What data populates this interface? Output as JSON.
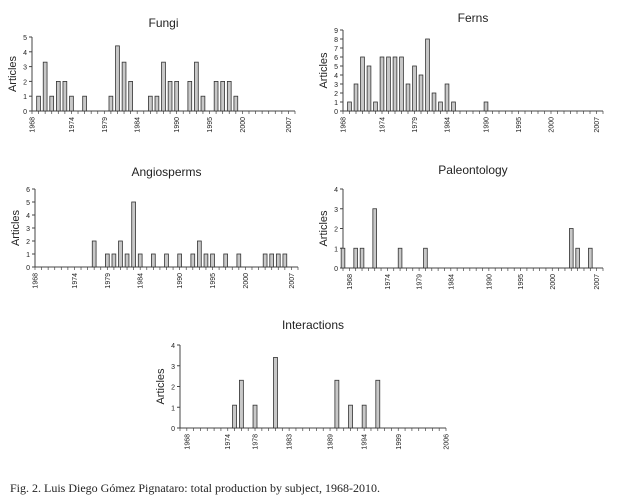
{
  "caption": "Fig. 2. Luis Diego Gómez Pignataro: total production by subject, 1968-2010.",
  "chart_data": [
    {
      "type": "bar",
      "title": "Fungi",
      "ylabel": "Articles",
      "ylim": [
        0,
        5
      ],
      "yticks": [
        0,
        1,
        2,
        3,
        4,
        5
      ],
      "xlim": [
        1968,
        2008
      ],
      "xticks": [
        "1968",
        "1974",
        "1979",
        "1984",
        "1990",
        "1995",
        "2000",
        "2007"
      ],
      "bar_color": "#c8c8c8",
      "x": [
        1969,
        1970,
        1971,
        1972,
        1973,
        1974,
        1976,
        1980,
        1981,
        1982,
        1983,
        1986,
        1987,
        1988,
        1989,
        1990,
        1992,
        1993,
        1994,
        1996,
        1997,
        1998,
        1999
      ],
      "values": [
        1,
        3.3,
        1,
        2,
        2,
        1,
        1,
        1,
        4.4,
        3.3,
        2,
        1,
        1,
        3.3,
        2,
        2,
        2,
        3.3,
        1,
        2,
        2,
        2,
        1
      ]
    },
    {
      "type": "bar",
      "title": "Ferns",
      "ylabel": "Articles",
      "ylim": [
        0,
        9
      ],
      "yticks": [
        0,
        1,
        2,
        3,
        4,
        5,
        6,
        7,
        8,
        9
      ],
      "xlim": [
        1968,
        2008
      ],
      "xticks": [
        "1968",
        "1974",
        "1979",
        "1984",
        "1990",
        "1995",
        "2000",
        "2007"
      ],
      "bar_color": "#c8c8c8",
      "x": [
        1969,
        1970,
        1971,
        1972,
        1973,
        1974,
        1975,
        1976,
        1977,
        1978,
        1979,
        1980,
        1981,
        1982,
        1983,
        1984,
        1985,
        1990
      ],
      "values": [
        1,
        3,
        6,
        5,
        1,
        6,
        6,
        6,
        6,
        3,
        5,
        4,
        8,
        2,
        1,
        3,
        1,
        1
      ]
    },
    {
      "type": "bar",
      "title": "Angiosperms",
      "ylabel": "Articles",
      "ylim": [
        0,
        6
      ],
      "yticks": [
        0,
        1,
        2,
        3,
        4,
        5,
        6
      ],
      "xlim": [
        1968,
        2008
      ],
      "xticks": [
        "1968",
        "1974",
        "1979",
        "1984",
        "1990",
        "1995",
        "2000",
        "2007"
      ],
      "bar_color": "#c8c8c8",
      "x": [
        1977,
        1979,
        1980,
        1981,
        1982,
        1983,
        1984,
        1986,
        1988,
        1990,
        1992,
        1993,
        1994,
        1995,
        1997,
        1999,
        2003,
        2004,
        2005,
        2006
      ],
      "values": [
        2,
        1,
        1,
        2,
        1,
        5,
        1,
        1,
        1,
        1,
        1,
        2,
        1,
        1,
        1,
        1,
        1,
        1,
        1,
        1
      ]
    },
    {
      "type": "bar",
      "title": "Paleontology",
      "ylabel": "Articles",
      "ylim": [
        0,
        4
      ],
      "yticks": [
        0,
        1,
        2,
        3,
        4
      ],
      "xlim": [
        1967,
        2008
      ],
      "xticks": [
        "1968",
        "1974",
        "1979",
        "1984",
        "1990",
        "1995",
        "2000",
        "2007"
      ],
      "bar_color": "#c8c8c8",
      "x": [
        1967,
        1969,
        1970,
        1972,
        1976,
        1980,
        2003,
        2004,
        2006
      ],
      "values": [
        1,
        1,
        1,
        3,
        1,
        1,
        2,
        1,
        1
      ]
    },
    {
      "type": "bar",
      "title": "Interactions",
      "ylabel": "Articles",
      "ylim": [
        0,
        4
      ],
      "yticks": [
        0,
        1,
        2,
        3,
        4
      ],
      "xlim": [
        1967,
        2006
      ],
      "xticks": [
        "1968",
        "1974",
        "1978",
        "1983",
        "1989",
        "1994",
        "1999",
        "2006"
      ],
      "bar_color": "#c8c8c8",
      "x": [
        1975,
        1976,
        1978,
        1981,
        1990,
        1992,
        1994,
        1996
      ],
      "values": [
        1.1,
        2.3,
        1.1,
        3.4,
        2.3,
        1.1,
        1.1,
        2.3
      ]
    }
  ]
}
